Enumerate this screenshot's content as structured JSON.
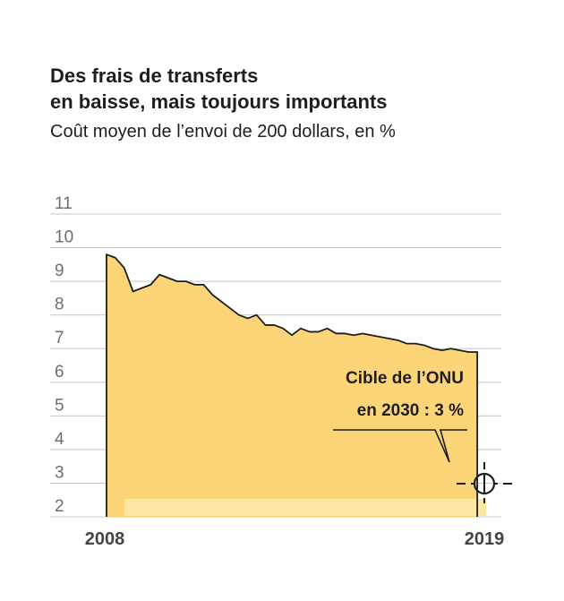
{
  "title_line1": "Des frais de transferts",
  "title_line2": "en baisse, mais toujours importants",
  "subtitle": "Coût moyen de l’envoi de 200 dollars, en %",
  "colors": {
    "area_fill": "#fbd578",
    "area_inner": "#fde7a4",
    "line": "#1e1e1e",
    "grid": "#c8c8c8",
    "axis_text": "#6e6e6e"
  },
  "chart_data": {
    "type": "area",
    "title": "Des frais de transferts en baisse, mais toujours importants",
    "subtitle": "Coût moyen de l’envoi de 200 dollars, en %",
    "xlabel": "",
    "ylabel": "",
    "ylim": [
      2,
      11
    ],
    "yticks": [
      2,
      3,
      4,
      5,
      6,
      7,
      8,
      9,
      10,
      11
    ],
    "ytick_labels": [
      "2",
      "3",
      "4",
      "5",
      "6",
      "7",
      "8",
      "9",
      "10",
      "11"
    ],
    "xlim": [
      2008.75,
      2019.5
    ],
    "xtick_labels": [
      "2008",
      "2019"
    ],
    "grid": true,
    "x": [
      2008.75,
      2009.0,
      2009.25,
      2009.5,
      2009.75,
      2010.0,
      2010.25,
      2010.5,
      2010.75,
      2011.0,
      2011.25,
      2011.5,
      2011.75,
      2012.0,
      2012.25,
      2012.5,
      2012.75,
      2013.0,
      2013.25,
      2013.5,
      2013.75,
      2014.0,
      2014.25,
      2014.5,
      2014.75,
      2015.0,
      2015.25,
      2015.5,
      2015.75,
      2016.0,
      2016.25,
      2016.5,
      2016.75,
      2017.0,
      2017.25,
      2017.5,
      2017.75,
      2018.0,
      2018.25,
      2018.5,
      2018.75,
      2019.0,
      2019.25
    ],
    "values": [
      9.8,
      9.7,
      9.4,
      8.7,
      8.8,
      8.9,
      9.2,
      9.1,
      9.0,
      9.0,
      8.9,
      8.9,
      8.6,
      8.4,
      8.2,
      8.0,
      7.9,
      8.0,
      7.7,
      7.7,
      7.6,
      7.4,
      7.6,
      7.5,
      7.5,
      7.6,
      7.45,
      7.45,
      7.4,
      7.45,
      7.4,
      7.35,
      7.3,
      7.25,
      7.15,
      7.15,
      7.1,
      7.0,
      6.95,
      7.0,
      6.95,
      6.9,
      6.9
    ],
    "annotation": {
      "line1": "Cible de l’ONU",
      "line2": "en 2030 : 3 %",
      "target_year": 2030,
      "target_value": 3
    }
  }
}
